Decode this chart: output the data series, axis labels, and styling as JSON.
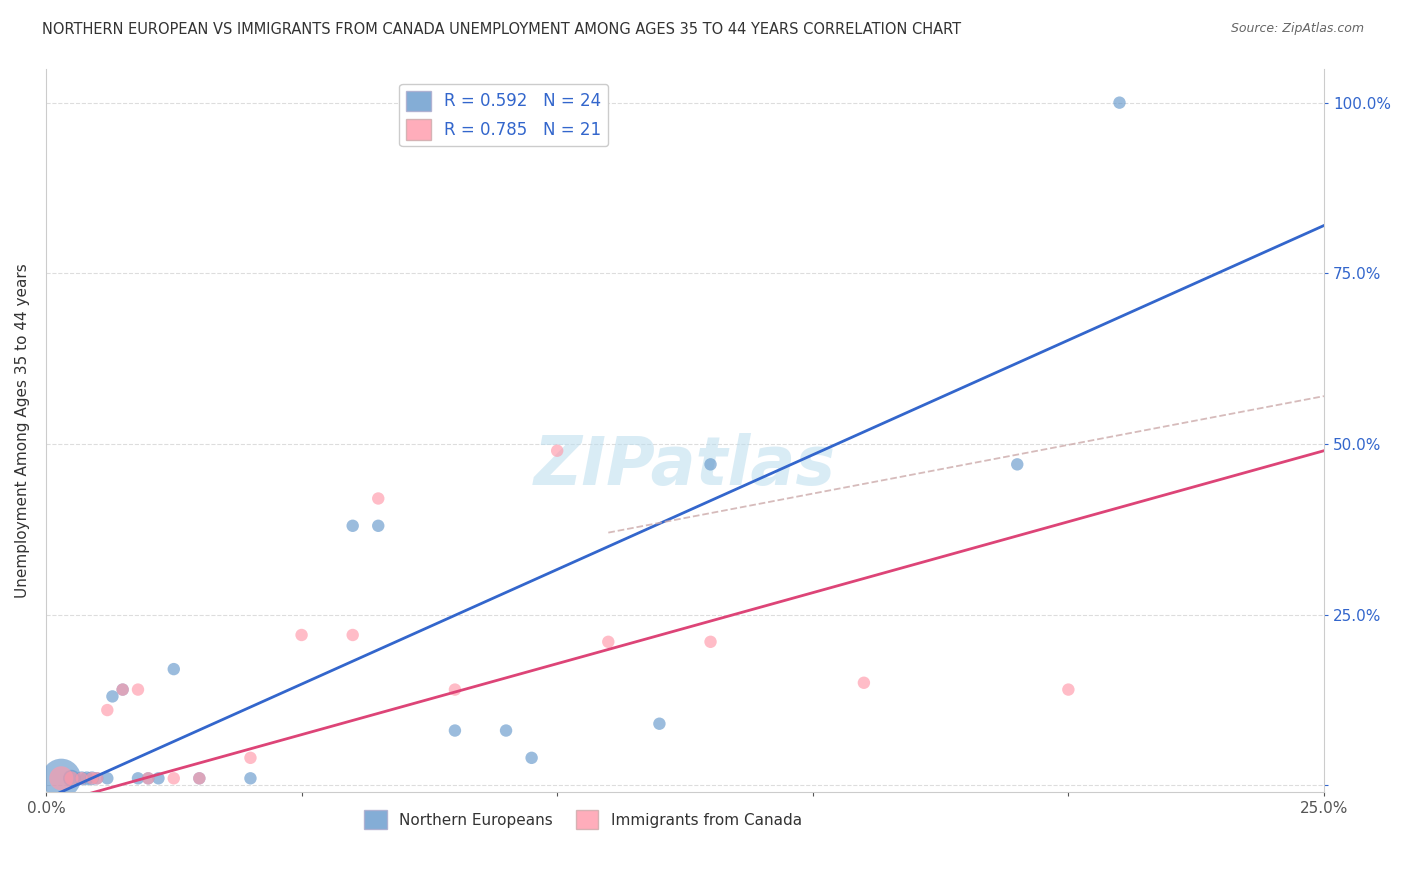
{
  "title": "NORTHERN EUROPEAN VS IMMIGRANTS FROM CANADA UNEMPLOYMENT AMONG AGES 35 TO 44 YEARS CORRELATION CHART",
  "source": "Source: ZipAtlas.com",
  "ylabel": "Unemployment Among Ages 35 to 44 years",
  "xlim": [
    0.0,
    0.25
  ],
  "ylim": [
    -0.01,
    1.05
  ],
  "xticks": [
    0.0,
    0.05,
    0.1,
    0.15,
    0.2,
    0.25
  ],
  "yticks": [
    0.0,
    0.25,
    0.5,
    0.75,
    1.0
  ],
  "xticklabels": [
    "0.0%",
    "",
    "",
    "",
    "",
    "25.0%"
  ],
  "yticklabels_right": [
    "",
    "25.0%",
    "50.0%",
    "75.0%",
    "100.0%"
  ],
  "legend_r1": "R = 0.592   N = 24",
  "legend_r2": "R = 0.785   N = 21",
  "blue_color": "#6699CC",
  "pink_color": "#FF99AA",
  "trend_blue": "#3366CC",
  "trend_pink": "#DD4477",
  "dashed_color": "#CCAAAA",
  "blue_scatter": {
    "x": [
      0.003,
      0.005,
      0.007,
      0.008,
      0.009,
      0.01,
      0.012,
      0.013,
      0.015,
      0.018,
      0.02,
      0.022,
      0.025,
      0.03,
      0.04,
      0.06,
      0.065,
      0.08,
      0.09,
      0.095,
      0.12,
      0.13,
      0.19,
      0.21
    ],
    "y": [
      0.01,
      0.01,
      0.01,
      0.01,
      0.01,
      0.01,
      0.01,
      0.13,
      0.14,
      0.01,
      0.01,
      0.01,
      0.17,
      0.01,
      0.01,
      0.38,
      0.38,
      0.08,
      0.08,
      0.04,
      0.09,
      0.47,
      0.47,
      1.0
    ],
    "sizes": [
      800,
      150,
      100,
      100,
      100,
      80,
      80,
      80,
      80,
      80,
      80,
      80,
      80,
      80,
      80,
      80,
      80,
      80,
      80,
      80,
      80,
      80,
      80,
      80
    ]
  },
  "pink_scatter": {
    "x": [
      0.003,
      0.005,
      0.007,
      0.009,
      0.01,
      0.012,
      0.015,
      0.018,
      0.02,
      0.025,
      0.03,
      0.04,
      0.05,
      0.06,
      0.065,
      0.08,
      0.1,
      0.11,
      0.13,
      0.16,
      0.2
    ],
    "y": [
      0.01,
      0.01,
      0.01,
      0.01,
      0.01,
      0.11,
      0.14,
      0.14,
      0.01,
      0.01,
      0.01,
      0.04,
      0.22,
      0.22,
      0.42,
      0.14,
      0.49,
      0.21,
      0.21,
      0.15,
      0.14
    ],
    "sizes": [
      300,
      100,
      80,
      80,
      80,
      80,
      80,
      80,
      80,
      80,
      80,
      80,
      80,
      80,
      80,
      80,
      80,
      80,
      80,
      80,
      80
    ]
  },
  "watermark": "ZIPatlas",
  "watermark_color": "#BBDDEE",
  "background_color": "#FFFFFF",
  "grid_color": "#DDDDDD"
}
